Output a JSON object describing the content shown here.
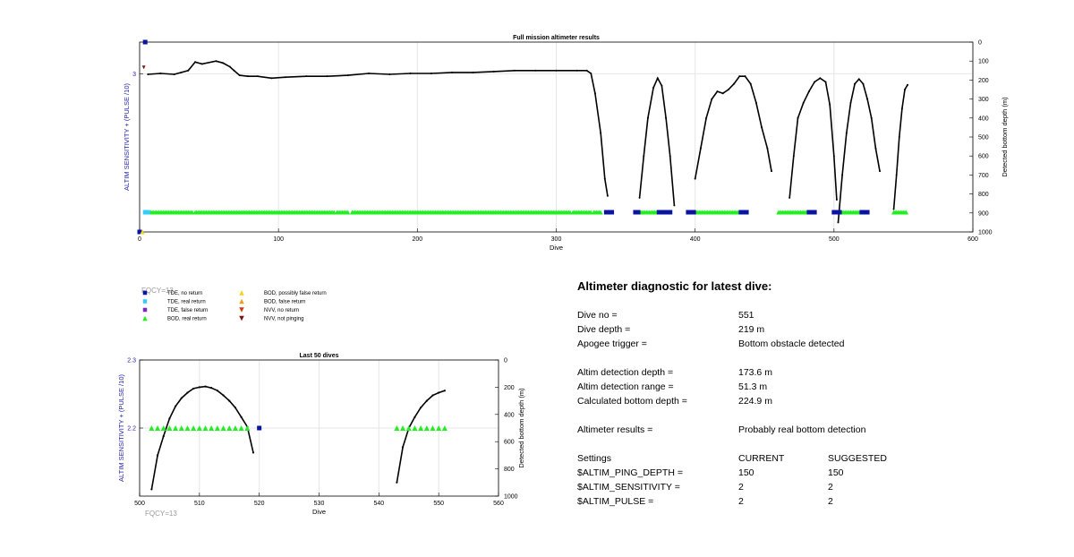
{
  "colors": {
    "tde_no_return": "#0a14a0",
    "tde_real_return": "#33ccff",
    "tde_false_return": "#7a2cc0",
    "bod_real_return": "#22ee22",
    "bod_possibly_false": "#f2d41a",
    "bod_false_return": "#f29a1a",
    "nvv_no_return": "#d03a0a",
    "nvv_not_pinging": "#7a1410",
    "left_axis": "#2222aa",
    "grid": "#e6e6e6"
  },
  "chart_data": [
    {
      "type": "scatter",
      "title": "Full mission altimeter results",
      "xlabel": "Dive",
      "ylabel_left": "ALTIM SENSITIVITY + (PULSE /10)",
      "ylabel_right": "Detected bottom depth (m)",
      "xlim": [
        0,
        600
      ],
      "ylim_left": [
        2,
        3.2
      ],
      "ylim_right": [
        1000,
        0
      ],
      "xticks": [
        "0",
        "100",
        "200",
        "300",
        "400",
        "500",
        "600"
      ],
      "yticks_left": [
        "3"
      ],
      "yticks_right": [
        "0",
        "100",
        "200",
        "300",
        "400",
        "500",
        "600",
        "700",
        "800",
        "900",
        "1000"
      ],
      "grid": true,
      "annotation": "FQCY=13",
      "depth_segments": [
        [
          [
            6,
            170
          ],
          [
            15,
            165
          ],
          [
            25,
            170
          ],
          [
            30,
            160
          ],
          [
            35,
            150
          ],
          [
            40,
            105
          ],
          [
            45,
            115
          ],
          [
            55,
            100
          ],
          [
            60,
            110
          ],
          [
            65,
            130
          ],
          [
            68,
            150
          ],
          [
            72,
            175
          ],
          [
            78,
            180
          ],
          [
            85,
            180
          ],
          [
            95,
            190
          ],
          [
            105,
            185
          ],
          [
            120,
            180
          ],
          [
            135,
            180
          ],
          [
            150,
            175
          ],
          [
            165,
            165
          ],
          [
            180,
            170
          ],
          [
            195,
            165
          ],
          [
            210,
            165
          ],
          [
            225,
            160
          ],
          [
            240,
            160
          ],
          [
            255,
            155
          ],
          [
            270,
            150
          ],
          [
            285,
            150
          ],
          [
            300,
            150
          ],
          [
            315,
            150
          ],
          [
            322,
            150
          ],
          [
            325,
            165
          ],
          [
            328,
            270
          ],
          [
            332,
            480
          ],
          [
            335,
            720
          ],
          [
            337,
            810
          ]
        ],
        [
          [
            360,
            820
          ],
          [
            363,
            600
          ],
          [
            366,
            400
          ],
          [
            370,
            240
          ],
          [
            373,
            190
          ],
          [
            376,
            230
          ],
          [
            379,
            400
          ],
          [
            382,
            600
          ],
          [
            385,
            860
          ]
        ],
        [
          [
            400,
            720
          ],
          [
            404,
            560
          ],
          [
            408,
            400
          ],
          [
            412,
            300
          ],
          [
            416,
            260
          ],
          [
            420,
            270
          ],
          [
            424,
            250
          ],
          [
            428,
            220
          ],
          [
            432,
            180
          ],
          [
            436,
            180
          ],
          [
            440,
            220
          ],
          [
            444,
            320
          ],
          [
            448,
            450
          ],
          [
            452,
            560
          ],
          [
            455,
            680
          ]
        ],
        [
          [
            468,
            820
          ],
          [
            471,
            600
          ],
          [
            474,
            400
          ],
          [
            478,
            320
          ],
          [
            482,
            260
          ],
          [
            486,
            210
          ],
          [
            490,
            190
          ],
          [
            494,
            210
          ],
          [
            497,
            330
          ],
          [
            500,
            600
          ],
          [
            502,
            830
          ]
        ],
        [
          [
            503,
            950
          ],
          [
            506,
            700
          ],
          [
            509,
            480
          ],
          [
            512,
            320
          ],
          [
            515,
            220
          ],
          [
            518,
            195
          ],
          [
            521,
            220
          ],
          [
            524,
            300
          ],
          [
            527,
            400
          ],
          [
            530,
            560
          ],
          [
            533,
            680
          ]
        ],
        [
          [
            543,
            880
          ],
          [
            545,
            700
          ],
          [
            547,
            500
          ],
          [
            549,
            350
          ],
          [
            551,
            250
          ],
          [
            553,
            225
          ]
        ]
      ],
      "bod_real_return_ranges": [
        [
          5,
          38
        ],
        [
          40,
          140
        ],
        [
          142,
          150
        ],
        [
          153,
          310
        ],
        [
          312,
          325
        ],
        [
          327,
          332
        ],
        [
          360,
          374
        ],
        [
          400,
          432
        ],
        [
          460,
          480
        ],
        [
          505,
          518
        ],
        [
          543,
          552
        ]
      ],
      "tde_real_return_ranges": [
        [
          4,
          6
        ]
      ],
      "tde_no_return_ranges": [
        [
          336,
          340
        ],
        [
          357,
          359
        ],
        [
          374,
          382
        ],
        [
          395,
          399
        ],
        [
          433,
          437
        ],
        [
          482,
          486
        ],
        [
          500,
          504
        ],
        [
          520,
          524
        ]
      ],
      "special_points": [
        {
          "series": "TDE, no return",
          "x": 4,
          "y": 3.2
        },
        {
          "series": "NVV, not pinging",
          "x": 3,
          "y": 3.04
        },
        {
          "series": "TDE, no return",
          "x": 0,
          "y": 2
        },
        {
          "series": "BOD, possibly false return",
          "x": 2,
          "y": 2
        }
      ]
    },
    {
      "type": "scatter",
      "title": "Last 50 dives",
      "xlabel": "Dive",
      "ylabel_left": "ALTIM SENSITIVITY + (PULSE /10)",
      "ylabel_right": "Detected bottom depth (m)",
      "xlim": [
        500,
        560
      ],
      "ylim_left": [
        2.1,
        2.3
      ],
      "ylim_right": [
        1000,
        0
      ],
      "xticks": [
        "500",
        "510",
        "520",
        "530",
        "540",
        "550",
        "560"
      ],
      "yticks_left": [
        "2.3",
        "2.2"
      ],
      "yticks_right": [
        "0",
        "200",
        "400",
        "600",
        "800",
        "1000"
      ],
      "grid": true,
      "annotation": "FQCY=13",
      "depth_segments": [
        [
          [
            502,
            950
          ],
          [
            503,
            700
          ],
          [
            504,
            560
          ],
          [
            505,
            430
          ],
          [
            506,
            340
          ],
          [
            507,
            280
          ],
          [
            508,
            240
          ],
          [
            509,
            210
          ],
          [
            510,
            200
          ],
          [
            511,
            195
          ],
          [
            512,
            205
          ],
          [
            513,
            225
          ],
          [
            514,
            260
          ],
          [
            515,
            300
          ],
          [
            516,
            350
          ],
          [
            517,
            420
          ],
          [
            518,
            490
          ],
          [
            519,
            680
          ]
        ],
        [
          [
            543,
            900
          ],
          [
            544,
            640
          ],
          [
            545,
            500
          ],
          [
            546,
            420
          ],
          [
            547,
            350
          ],
          [
            548,
            300
          ],
          [
            549,
            260
          ],
          [
            550,
            240
          ],
          [
            551,
            225
          ]
        ]
      ],
      "bod_real_return_points": [
        502,
        503,
        504,
        505,
        506,
        507,
        508,
        509,
        510,
        511,
        512,
        513,
        514,
        515,
        516,
        517,
        518,
        543,
        544,
        545,
        546,
        547,
        548,
        549,
        550,
        551
      ],
      "tde_no_return_points": [
        520
      ]
    }
  ],
  "legend": [
    {
      "label": "TDE, no return",
      "shape": "square",
      "color": "#0a14a0"
    },
    {
      "label": "TDE, real return",
      "shape": "square",
      "color": "#33ccff"
    },
    {
      "label": "TDE, false return",
      "shape": "square",
      "color": "#7a2cc0"
    },
    {
      "label": "BOD, real return",
      "shape": "triangle-up",
      "color": "#22ee22"
    },
    {
      "label": "BOD, possibly false return",
      "shape": "triangle-up",
      "color": "#f2d41a"
    },
    {
      "label": "BOD, false return",
      "shape": "triangle-up",
      "color": "#f29a1a"
    },
    {
      "label": "NVV, no return",
      "shape": "triangle-down",
      "color": "#d03a0a"
    },
    {
      "label": "NVV, not pinging",
      "shape": "triangle-down",
      "color": "#7a1410"
    }
  ],
  "diagnostic": {
    "title": "Altimeter diagnostic for latest dive:",
    "rows": [
      {
        "label": "Dive no =",
        "value": "551"
      },
      {
        "label": "Dive depth =",
        "value": "219 m"
      },
      {
        "label": "Apogee trigger =",
        "value": "Bottom obstacle detected"
      },
      {
        "label": "Altim detection depth =",
        "value": "173.6 m"
      },
      {
        "label": "Altim detection range =",
        "value": "51.3 m"
      },
      {
        "label": "Calculated bottom depth =",
        "value": "224.9 m"
      },
      {
        "label": "Altimeter results =",
        "value": "Probably real bottom detection"
      }
    ],
    "settings_header": {
      "label": "Settings",
      "current": "CURRENT",
      "suggested": "SUGGESTED"
    },
    "settings": [
      {
        "label": "$ALTIM_PING_DEPTH =",
        "current": "150",
        "suggested": "150"
      },
      {
        "label": "$ALTIM_SENSITIVITY =",
        "current": "2",
        "suggested": "2"
      },
      {
        "label": "$ALTIM_PULSE =",
        "current": "2",
        "suggested": "2"
      }
    ]
  }
}
